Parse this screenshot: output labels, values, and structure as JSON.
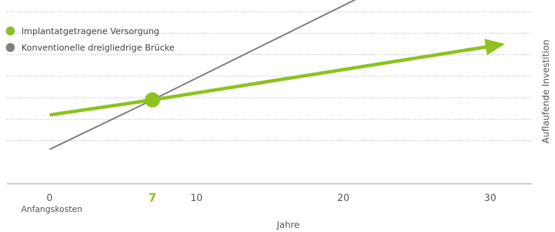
{
  "chart_data": {
    "type": "line",
    "xlabel": "Jahre",
    "ylabel": "Auflaufende Investition",
    "x_ticks": [
      {
        "value": 0,
        "label": "0",
        "highlight": false
      },
      {
        "value": 7,
        "label": "7",
        "highlight": true
      },
      {
        "value": 10,
        "label": "10",
        "highlight": false
      },
      {
        "value": 20,
        "label": "20",
        "highlight": false
      },
      {
        "value": 30,
        "label": "30",
        "highlight": false
      }
    ],
    "x_tick_sublabel": "Anfangskosten",
    "xlim": [
      -3,
      33
    ],
    "ylim": [
      0,
      8
    ],
    "gridlines_y": [
      2,
      3,
      4,
      5,
      6,
      7,
      8
    ],
    "grid": true,
    "legend_position": "top-left",
    "series": [
      {
        "name": "Implantatgetragene Versorgung",
        "color": "#8dc21f",
        "x": [
          0,
          7,
          31
        ],
        "y": [
          3.2,
          3.9,
          6.5
        ]
      },
      {
        "name": "Konventionelle dreigliedrige Brücke",
        "color": "#808080",
        "x": [
          0,
          7,
          31
        ],
        "y": [
          1.6,
          3.9,
          12.0
        ]
      }
    ],
    "intersection": {
      "x": 7,
      "y": 3.9
    }
  }
}
